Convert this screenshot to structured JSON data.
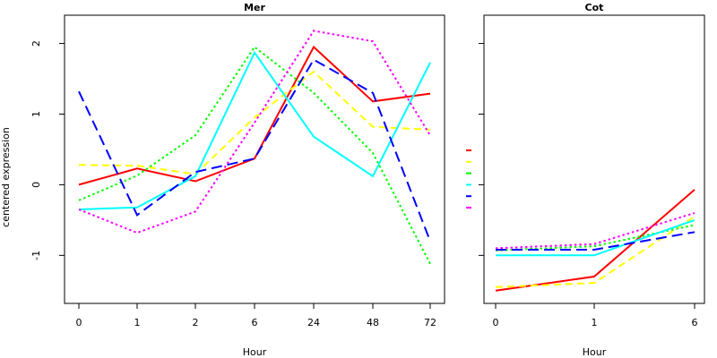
{
  "chart_data": [
    {
      "type": "line",
      "title": "Mer",
      "xlabel": "Hour",
      "ylabel": "centered expression",
      "categories": [
        "0",
        "1",
        "2",
        "6",
        "24",
        "48",
        "72"
      ],
      "ylim": [
        -1.68,
        2.4
      ],
      "yticks": [
        -1,
        0,
        1,
        2
      ],
      "grid": false,
      "series": [
        {
          "color": "#ff0000",
          "dash": "solid",
          "values": [
            0.0,
            0.23,
            0.05,
            0.37,
            1.95,
            1.18,
            1.29
          ]
        },
        {
          "color": "#ffff00",
          "dash": "dashed",
          "values": [
            0.28,
            0.27,
            0.15,
            0.95,
            1.6,
            0.82,
            0.78
          ]
        },
        {
          "color": "#00ff00",
          "dash": "dotted",
          "values": [
            -0.22,
            0.13,
            0.7,
            1.95,
            1.3,
            0.45,
            -1.12
          ]
        },
        {
          "color": "#00ffff",
          "dash": "solid",
          "values": [
            -0.35,
            -0.32,
            0.12,
            1.87,
            0.68,
            0.12,
            1.73
          ]
        },
        {
          "color": "#0000ff",
          "dash": "longdash",
          "values": [
            1.32,
            -0.43,
            0.18,
            0.37,
            1.77,
            1.3,
            -0.8
          ]
        },
        {
          "color": "#ff00ff",
          "dash": "dotted",
          "values": [
            -0.35,
            -0.68,
            -0.38,
            0.88,
            2.18,
            2.03,
            0.7
          ]
        }
      ]
    },
    {
      "type": "line",
      "title": "Cot",
      "xlabel": "Hour",
      "ylabel": "",
      "categories": [
        "0",
        "1",
        "6"
      ],
      "ylim": [
        -1.68,
        2.4
      ],
      "yticks": [
        -1,
        0,
        1,
        2
      ],
      "show_ytick_labels": false,
      "grid": false,
      "series": [
        {
          "color": "#ff0000",
          "dash": "solid",
          "values": [
            -1.5,
            -1.3,
            -0.07
          ]
        },
        {
          "color": "#ffff00",
          "dash": "dashed",
          "values": [
            -1.45,
            -1.39,
            -0.45
          ]
        },
        {
          "color": "#00ff00",
          "dash": "dotted",
          "values": [
            -0.93,
            -0.87,
            -0.57
          ]
        },
        {
          "color": "#00ffff",
          "dash": "solid",
          "values": [
            -1.0,
            -1.0,
            -0.5
          ]
        },
        {
          "color": "#0000ff",
          "dash": "longdash",
          "values": [
            -0.92,
            -0.92,
            -0.67
          ]
        },
        {
          "color": "#ff00ff",
          "dash": "dotted",
          "values": [
            -0.9,
            -0.84,
            -0.4
          ]
        }
      ]
    }
  ],
  "legend": {
    "placement": "center-between-panels",
    "items": [
      {
        "color": "#ff0000",
        "dash": "solid"
      },
      {
        "color": "#ffff00",
        "dash": "dashed"
      },
      {
        "color": "#00ff00",
        "dash": "dotted"
      },
      {
        "color": "#00ffff",
        "dash": "solid"
      },
      {
        "color": "#0000ff",
        "dash": "longdash"
      },
      {
        "color": "#ff00ff",
        "dash": "dotted"
      }
    ]
  }
}
